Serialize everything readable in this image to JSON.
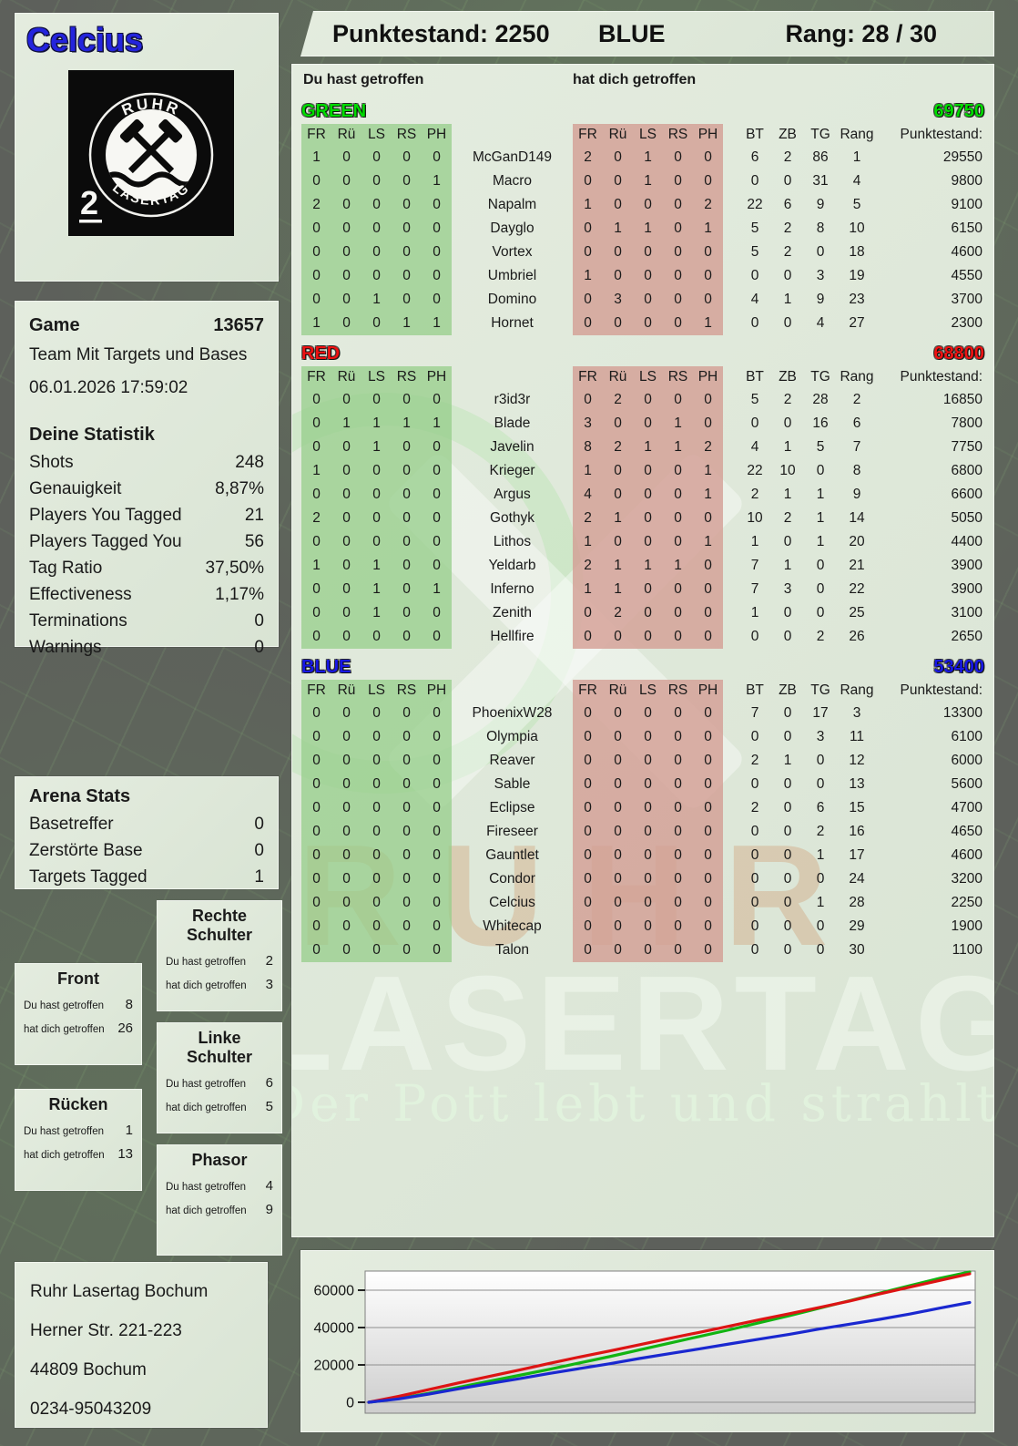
{
  "player": {
    "name": "Celcius"
  },
  "logo": {
    "arc_top": "RUHR",
    "arc_bottom": "LASERTAG",
    "badge": "2"
  },
  "header": {
    "punktestand_label": "Punktestand:",
    "punktestand_value": "2250",
    "team": "BLUE",
    "rang_label": "Rang:",
    "rang_value": "28 / 30"
  },
  "game": {
    "label": "Game",
    "id": "13657",
    "mode": "Team Mit Targets und Bases",
    "datetime": "06.01.2026 17:59:02"
  },
  "deine_statistik": {
    "title": "Deine Statistik",
    "rows": [
      {
        "label": "Shots",
        "value": "248"
      },
      {
        "label": "Genauigkeit",
        "value": "8,87%"
      },
      {
        "label": "Players You Tagged",
        "value": "21"
      },
      {
        "label": "Players Tagged You",
        "value": "56"
      },
      {
        "label": "Tag Ratio",
        "value": "37,50%"
      },
      {
        "label": "Effectiveness",
        "value": "1,17%"
      },
      {
        "label": "Terminations",
        "value": "0"
      },
      {
        "label": "Warnings",
        "value": "0"
      }
    ]
  },
  "arena_stats": {
    "title": "Arena Stats",
    "rows": [
      {
        "label": "Basetreffer",
        "value": "0"
      },
      {
        "label": "Zerstörte Base",
        "value": "0"
      },
      {
        "label": "Targets Tagged",
        "value": "1"
      }
    ]
  },
  "hit_zones": {
    "du_label": "Du hast getroffen",
    "dich_label": "hat dich getroffen",
    "zones": [
      {
        "name": "Front",
        "du": "8",
        "dich": "26"
      },
      {
        "name": "Rechte Schulter",
        "du": "2",
        "dich": "3"
      },
      {
        "name": "Linke Schulter",
        "du": "6",
        "dich": "5"
      },
      {
        "name": "Rücken",
        "du": "1",
        "dich": "13"
      },
      {
        "name": "Phasor",
        "du": "4",
        "dich": "9"
      }
    ]
  },
  "scoreboard": {
    "left_header": "Du hast getroffen",
    "right_header": "hat dich getroffen",
    "hit_columns": [
      "FR",
      "Rü",
      "LS",
      "RS",
      "PH"
    ],
    "stat_columns": [
      "BT",
      "ZB",
      "TG",
      "Rang",
      "Punktestand:"
    ],
    "teams": [
      {
        "name": "GREEN",
        "color": "#00dc00",
        "total": "69750",
        "players": [
          {
            "name": "McGanD149",
            "you": [
              1,
              0,
              0,
              0,
              0
            ],
            "them": [
              2,
              0,
              1,
              0,
              0
            ],
            "bt": 6,
            "zb": 2,
            "tg": 86,
            "rang": 1,
            "punkte": "29550"
          },
          {
            "name": "Macro",
            "you": [
              0,
              0,
              0,
              0,
              1
            ],
            "them": [
              0,
              0,
              1,
              0,
              0
            ],
            "bt": 0,
            "zb": 0,
            "tg": 31,
            "rang": 4,
            "punkte": "9800"
          },
          {
            "name": "Napalm",
            "you": [
              2,
              0,
              0,
              0,
              0
            ],
            "them": [
              1,
              0,
              0,
              0,
              2
            ],
            "bt": 22,
            "zb": 6,
            "tg": 9,
            "rang": 5,
            "punkte": "9100"
          },
          {
            "name": "Dayglo",
            "you": [
              0,
              0,
              0,
              0,
              0
            ],
            "them": [
              0,
              1,
              1,
              0,
              1
            ],
            "bt": 5,
            "zb": 2,
            "tg": 8,
            "rang": 10,
            "punkte": "6150"
          },
          {
            "name": "Vortex",
            "you": [
              0,
              0,
              0,
              0,
              0
            ],
            "them": [
              0,
              0,
              0,
              0,
              0
            ],
            "bt": 5,
            "zb": 2,
            "tg": 0,
            "rang": 18,
            "punkte": "4600"
          },
          {
            "name": "Umbriel",
            "you": [
              0,
              0,
              0,
              0,
              0
            ],
            "them": [
              1,
              0,
              0,
              0,
              0
            ],
            "bt": 0,
            "zb": 0,
            "tg": 3,
            "rang": 19,
            "punkte": "4550"
          },
          {
            "name": "Domino",
            "you": [
              0,
              0,
              1,
              0,
              0
            ],
            "them": [
              0,
              3,
              0,
              0,
              0
            ],
            "bt": 4,
            "zb": 1,
            "tg": 9,
            "rang": 23,
            "punkte": "3700"
          },
          {
            "name": "Hornet",
            "you": [
              1,
              0,
              0,
              1,
              1
            ],
            "them": [
              0,
              0,
              0,
              0,
              1
            ],
            "bt": 0,
            "zb": 0,
            "tg": 4,
            "rang": 27,
            "punkte": "2300"
          }
        ]
      },
      {
        "name": "RED",
        "color": "#ee1212",
        "total": "68800",
        "players": [
          {
            "name": "r3id3r",
            "you": [
              0,
              0,
              0,
              0,
              0
            ],
            "them": [
              0,
              2,
              0,
              0,
              0
            ],
            "bt": 5,
            "zb": 2,
            "tg": 28,
            "rang": 2,
            "punkte": "16850"
          },
          {
            "name": "Blade",
            "you": [
              0,
              1,
              1,
              1,
              1
            ],
            "them": [
              3,
              0,
              0,
              1,
              0
            ],
            "bt": 0,
            "zb": 0,
            "tg": 16,
            "rang": 6,
            "punkte": "7800"
          },
          {
            "name": "Javelin",
            "you": [
              0,
              0,
              1,
              0,
              0
            ],
            "them": [
              8,
              2,
              1,
              1,
              2
            ],
            "bt": 4,
            "zb": 1,
            "tg": 5,
            "rang": 7,
            "punkte": "7750"
          },
          {
            "name": "Krieger",
            "you": [
              1,
              0,
              0,
              0,
              0
            ],
            "them": [
              1,
              0,
              0,
              0,
              1
            ],
            "bt": 22,
            "zb": 10,
            "tg": 0,
            "rang": 8,
            "punkte": "6800"
          },
          {
            "name": "Argus",
            "you": [
              0,
              0,
              0,
              0,
              0
            ],
            "them": [
              4,
              0,
              0,
              0,
              1
            ],
            "bt": 2,
            "zb": 1,
            "tg": 1,
            "rang": 9,
            "punkte": "6600"
          },
          {
            "name": "Gothyk",
            "you": [
              2,
              0,
              0,
              0,
              0
            ],
            "them": [
              2,
              1,
              0,
              0,
              0
            ],
            "bt": 10,
            "zb": 2,
            "tg": 1,
            "rang": 14,
            "punkte": "5050"
          },
          {
            "name": "Lithos",
            "you": [
              0,
              0,
              0,
              0,
              0
            ],
            "them": [
              1,
              0,
              0,
              0,
              1
            ],
            "bt": 1,
            "zb": 0,
            "tg": 1,
            "rang": 20,
            "punkte": "4400"
          },
          {
            "name": "Yeldarb",
            "you": [
              1,
              0,
              1,
              0,
              0
            ],
            "them": [
              2,
              1,
              1,
              1,
              0
            ],
            "bt": 7,
            "zb": 1,
            "tg": 0,
            "rang": 21,
            "punkte": "3900"
          },
          {
            "name": "Inferno",
            "you": [
              0,
              0,
              1,
              0,
              1
            ],
            "them": [
              1,
              1,
              0,
              0,
              0
            ],
            "bt": 7,
            "zb": 3,
            "tg": 0,
            "rang": 22,
            "punkte": "3900"
          },
          {
            "name": "Zenith",
            "you": [
              0,
              0,
              1,
              0,
              0
            ],
            "them": [
              0,
              2,
              0,
              0,
              0
            ],
            "bt": 1,
            "zb": 0,
            "tg": 0,
            "rang": 25,
            "punkte": "3100"
          },
          {
            "name": "Hellfire",
            "you": [
              0,
              0,
              0,
              0,
              0
            ],
            "them": [
              0,
              0,
              0,
              0,
              0
            ],
            "bt": 0,
            "zb": 0,
            "tg": 2,
            "rang": 26,
            "punkte": "2650"
          }
        ]
      },
      {
        "name": "BLUE",
        "color": "#1818e6",
        "total": "53400",
        "players": [
          {
            "name": "PhoenixW28",
            "you": [
              0,
              0,
              0,
              0,
              0
            ],
            "them": [
              0,
              0,
              0,
              0,
              0
            ],
            "bt": 7,
            "zb": 0,
            "tg": 17,
            "rang": 3,
            "punkte": "13300"
          },
          {
            "name": "Olympia",
            "you": [
              0,
              0,
              0,
              0,
              0
            ],
            "them": [
              0,
              0,
              0,
              0,
              0
            ],
            "bt": 0,
            "zb": 0,
            "tg": 3,
            "rang": 11,
            "punkte": "6100"
          },
          {
            "name": "Reaver",
            "you": [
              0,
              0,
              0,
              0,
              0
            ],
            "them": [
              0,
              0,
              0,
              0,
              0
            ],
            "bt": 2,
            "zb": 1,
            "tg": 0,
            "rang": 12,
            "punkte": "6000"
          },
          {
            "name": "Sable",
            "you": [
              0,
              0,
              0,
              0,
              0
            ],
            "them": [
              0,
              0,
              0,
              0,
              0
            ],
            "bt": 0,
            "zb": 0,
            "tg": 0,
            "rang": 13,
            "punkte": "5600"
          },
          {
            "name": "Eclipse",
            "you": [
              0,
              0,
              0,
              0,
              0
            ],
            "them": [
              0,
              0,
              0,
              0,
              0
            ],
            "bt": 2,
            "zb": 0,
            "tg": 6,
            "rang": 15,
            "punkte": "4700"
          },
          {
            "name": "Fireseer",
            "you": [
              0,
              0,
              0,
              0,
              0
            ],
            "them": [
              0,
              0,
              0,
              0,
              0
            ],
            "bt": 0,
            "zb": 0,
            "tg": 2,
            "rang": 16,
            "punkte": "4650"
          },
          {
            "name": "Gauntlet",
            "you": [
              0,
              0,
              0,
              0,
              0
            ],
            "them": [
              0,
              0,
              0,
              0,
              0
            ],
            "bt": 0,
            "zb": 0,
            "tg": 1,
            "rang": 17,
            "punkte": "4600"
          },
          {
            "name": "Condor",
            "you": [
              0,
              0,
              0,
              0,
              0
            ],
            "them": [
              0,
              0,
              0,
              0,
              0
            ],
            "bt": 0,
            "zb": 0,
            "tg": 0,
            "rang": 24,
            "punkte": "3200"
          },
          {
            "name": "Celcius",
            "you": [
              0,
              0,
              0,
              0,
              0
            ],
            "them": [
              0,
              0,
              0,
              0,
              0
            ],
            "bt": 0,
            "zb": 0,
            "tg": 1,
            "rang": 28,
            "punkte": "2250"
          },
          {
            "name": "Whitecap",
            "you": [
              0,
              0,
              0,
              0,
              0
            ],
            "them": [
              0,
              0,
              0,
              0,
              0
            ],
            "bt": 0,
            "zb": 0,
            "tg": 0,
            "rang": 29,
            "punkte": "1900"
          },
          {
            "name": "Talon",
            "you": [
              0,
              0,
              0,
              0,
              0
            ],
            "them": [
              0,
              0,
              0,
              0,
              0
            ],
            "bt": 0,
            "zb": 0,
            "tg": 0,
            "rang": 30,
            "punkte": "1100"
          }
        ]
      }
    ]
  },
  "address": {
    "lines": [
      "Ruhr Lasertag Bochum",
      "Herner Str. 221-223",
      "44809 Bochum",
      "0234-95043209"
    ]
  },
  "watermark": {
    "ruhr": "RUHR",
    "lasertag": "LASERTAG",
    "slogan": "Der Pott lebt und strahlt"
  },
  "chart_data": {
    "type": "line",
    "title": "",
    "xlabel": "",
    "ylabel": "",
    "ylim": [
      0,
      71000
    ],
    "yticks": [
      0,
      20000,
      40000,
      60000
    ],
    "grid": true,
    "legend_position": "none",
    "series": [
      {
        "name": "GREEN",
        "color": "#12b412",
        "values": [
          0,
          2000,
          4800,
          8000,
          11200,
          14400,
          17600,
          21000,
          24400,
          28000,
          31600,
          35200,
          38800,
          42600,
          46400,
          50400,
          54400,
          58400,
          62400,
          66400,
          69750
        ]
      },
      {
        "name": "RED",
        "color": "#dd1414",
        "values": [
          0,
          3200,
          6800,
          10400,
          13800,
          17200,
          20800,
          24200,
          27400,
          30800,
          34200,
          37400,
          40800,
          44200,
          47400,
          50800,
          54200,
          58000,
          61600,
          65200,
          68800
        ]
      },
      {
        "name": "BLUE",
        "color": "#1a28d0",
        "values": [
          0,
          1800,
          4400,
          7200,
          10000,
          12600,
          15400,
          18000,
          20600,
          23400,
          26000,
          28600,
          31200,
          33800,
          36400,
          39200,
          41800,
          44400,
          47200,
          50400,
          53400
        ]
      }
    ]
  }
}
